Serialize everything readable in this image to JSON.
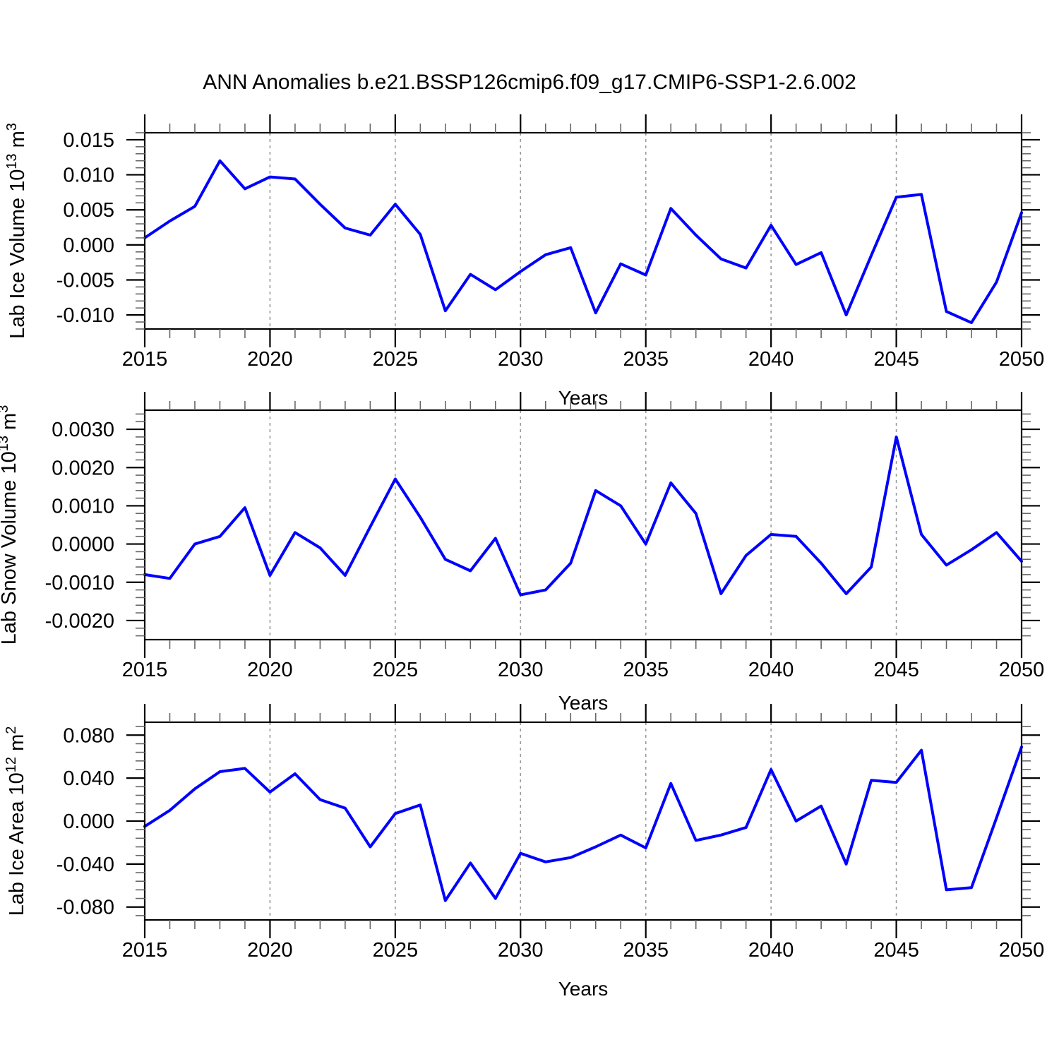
{
  "title": "ANN Anomalies b.e21.BSSP126cmip6.f09_g17.CMIP6-SSP1-2.6.002",
  "style": {
    "line_color": "#0000ff",
    "grid_color": "#999999",
    "frame_color": "#000000",
    "major_tick_color": "#000000",
    "minor_tick_color": "#666666",
    "text_color": "#000000"
  },
  "chart_data": [
    {
      "type": "line",
      "name": "lab-ice-volume",
      "ylabel": "Lab Ice Volume 10^13 m^3",
      "xlabel": "Years",
      "xlim": [
        2015,
        2050
      ],
      "ylim": [
        -0.012,
        0.016
      ],
      "xticks": [
        2015,
        2020,
        2025,
        2030,
        2035,
        2040,
        2045,
        2050
      ],
      "xtick_labels": [
        "2015",
        "2020",
        "2025",
        "2030",
        "2035",
        "2040",
        "2045",
        "2050"
      ],
      "x_minor_step": 1,
      "ytick_values": [
        0.015,
        0.01,
        0.005,
        0.0,
        -0.005,
        -0.01
      ],
      "ytick_labels": [
        "0.015",
        "0.010",
        "0.005",
        "0.000",
        "-0.005",
        "-0.010"
      ],
      "y_major_step": 0.005,
      "y_minor_step": 0.001,
      "grid_x": [
        2020,
        2025,
        2030,
        2035,
        2040,
        2045
      ],
      "years": [
        2015,
        2016,
        2017,
        2018,
        2019,
        2020,
        2021,
        2022,
        2023,
        2024,
        2025,
        2026,
        2027,
        2028,
        2029,
        2030,
        2031,
        2032,
        2033,
        2034,
        2035,
        2036,
        2037,
        2038,
        2039,
        2040,
        2041,
        2042,
        2043,
        2044,
        2045,
        2046,
        2047,
        2048,
        2049,
        2050
      ],
      "values": [
        0.001,
        0.0034,
        0.0055,
        0.012,
        0.008,
        0.0097,
        0.0094,
        0.0058,
        0.0024,
        0.0014,
        0.0058,
        0.0015,
        -0.0094,
        -0.0042,
        -0.0064,
        -0.0038,
        -0.0014,
        -0.0004,
        -0.0097,
        -0.0027,
        -0.0043,
        0.0052,
        0.0014,
        -0.002,
        -0.0033,
        0.0028,
        -0.0028,
        -0.0011,
        -0.01,
        -0.0015,
        0.0068,
        0.0072,
        -0.0095,
        -0.0111,
        -0.0053,
        0.0046
      ]
    },
    {
      "type": "line",
      "name": "lab-snow-volume",
      "ylabel": "Lab Snow Volume 10^13 m^3",
      "xlabel": "Years",
      "xlim": [
        2015,
        2050
      ],
      "ylim": [
        -0.0025,
        0.0035
      ],
      "xticks": [
        2015,
        2020,
        2025,
        2030,
        2035,
        2040,
        2045,
        2050
      ],
      "xtick_labels": [
        "2015",
        "2020",
        "2025",
        "2030",
        "2035",
        "2040",
        "2045",
        "2050"
      ],
      "x_minor_step": 1,
      "ytick_values": [
        0.003,
        0.002,
        0.001,
        0.0,
        -0.001,
        -0.002
      ],
      "ytick_labels": [
        "0.0030",
        "0.0020",
        "0.0010",
        "0.0000",
        "-0.0010",
        "-0.0020"
      ],
      "y_major_step": 0.001,
      "y_minor_step": 0.0002,
      "grid_x": [
        2020,
        2025,
        2030,
        2035,
        2040,
        2045
      ],
      "years": [
        2015,
        2016,
        2017,
        2018,
        2019,
        2020,
        2021,
        2022,
        2023,
        2024,
        2025,
        2026,
        2027,
        2028,
        2029,
        2030,
        2031,
        2032,
        2033,
        2034,
        2035,
        2036,
        2037,
        2038,
        2039,
        2040,
        2041,
        2042,
        2043,
        2044,
        2045,
        2046,
        2047,
        2048,
        2049,
        2050
      ],
      "values": [
        -0.0008,
        -0.0009,
        0.0,
        0.0002,
        0.00095,
        -0.00082,
        0.0003,
        -0.0001,
        -0.00082,
        0.00045,
        0.0017,
        0.0007,
        -0.0004,
        -0.0007,
        0.00015,
        -0.00133,
        -0.0012,
        -0.0005,
        0.0014,
        0.001,
        0.0,
        0.0016,
        0.0008,
        -0.0013,
        -0.0003,
        0.00025,
        0.0002,
        -0.0005,
        -0.0013,
        -0.0006,
        0.0028,
        0.00025,
        -0.00055,
        -0.00015,
        0.0003,
        -0.00045
      ]
    },
    {
      "type": "line",
      "name": "lab-ice-area",
      "ylabel": "Lab Ice Area 10^12 m^2",
      "xlabel": "Years",
      "xlim": [
        2015,
        2050
      ],
      "ylim": [
        -0.092,
        0.092
      ],
      "xticks": [
        2015,
        2020,
        2025,
        2030,
        2035,
        2040,
        2045,
        2050
      ],
      "xtick_labels": [
        "2015",
        "2020",
        "2025",
        "2030",
        "2035",
        "2040",
        "2045",
        "2050"
      ],
      "x_minor_step": 1,
      "ytick_values": [
        0.08,
        0.04,
        0.0,
        -0.04,
        -0.08
      ],
      "ytick_labels": [
        "0.080",
        "0.040",
        "0.000",
        "-0.040",
        "-0.080"
      ],
      "y_major_step": 0.04,
      "y_minor_step": 0.008,
      "grid_x": [
        2020,
        2025,
        2030,
        2035,
        2040,
        2045
      ],
      "years": [
        2015,
        2016,
        2017,
        2018,
        2019,
        2020,
        2021,
        2022,
        2023,
        2024,
        2025,
        2026,
        2027,
        2028,
        2029,
        2030,
        2031,
        2032,
        2033,
        2034,
        2035,
        2036,
        2037,
        2038,
        2039,
        2040,
        2041,
        2042,
        2043,
        2044,
        2045,
        2046,
        2047,
        2048,
        2049,
        2050
      ],
      "values": [
        -0.005,
        0.01,
        0.03,
        0.046,
        0.049,
        0.027,
        0.044,
        0.02,
        0.012,
        -0.024,
        0.007,
        0.015,
        -0.074,
        -0.039,
        -0.072,
        -0.03,
        -0.038,
        -0.034,
        -0.024,
        -0.013,
        -0.025,
        0.035,
        -0.018,
        -0.013,
        -0.006,
        0.048,
        0.0,
        0.014,
        -0.04,
        0.038,
        0.036,
        0.066,
        -0.064,
        -0.062,
        0.003,
        0.069
      ]
    }
  ]
}
